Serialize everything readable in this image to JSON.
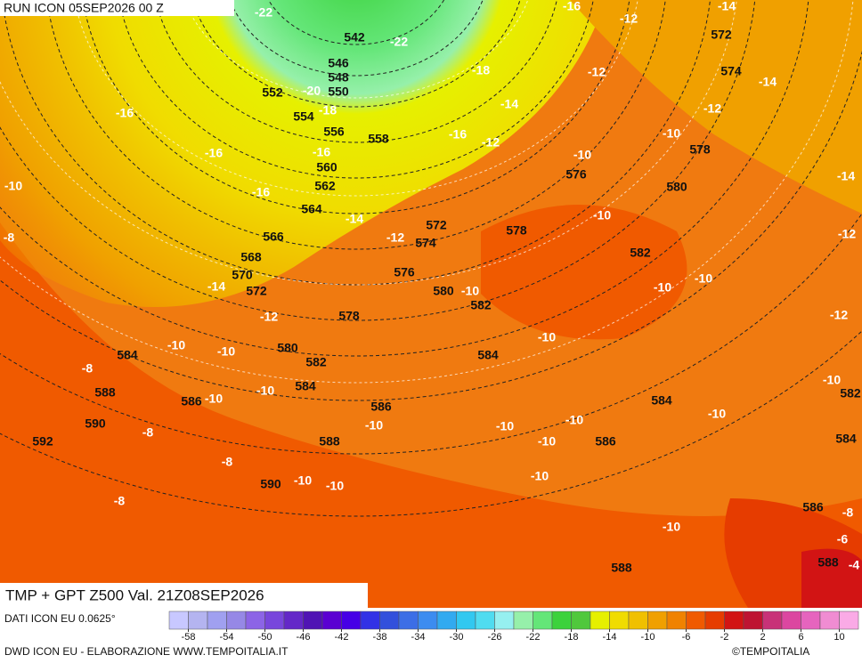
{
  "header": {
    "run": "RUN ICON 05SEP2026 00 Z"
  },
  "footer": {
    "title": "TMP + GPT Z500 Val. 21Z08SEP2026",
    "source": "DATI ICON EU 0.0625°",
    "credit": "DWD ICON EU - ELABORAZIONE WWW.TEMPOITALIA.IT",
    "copyright": "©TEMPOITALIA"
  },
  "map": {
    "geopotential_labels": [
      "542",
      "546",
      "548",
      "550",
      "552",
      "554",
      "556",
      "558",
      "560",
      "562",
      "564",
      "566",
      "568",
      "570",
      "572",
      "572",
      "574",
      "576",
      "578",
      "580",
      "582",
      "584",
      "580",
      "582",
      "584",
      "586",
      "584",
      "588",
      "590",
      "592",
      "590",
      "588",
      "586",
      "586",
      "584",
      "588",
      "588",
      "586",
      "584",
      "582",
      "578",
      "576",
      "578",
      "580",
      "582",
      "572",
      "574"
    ],
    "temperature_labels": [
      "-22",
      "-22",
      "-20",
      "-18",
      "-18",
      "-16",
      "-16",
      "-16",
      "-16",
      "-16",
      "-16",
      "-14",
      "-14",
      "-14",
      "-14",
      "-14",
      "-14",
      "-12",
      "-12",
      "-12",
      "-12",
      "-12",
      "-12",
      "-12",
      "-12",
      "-10",
      "-10",
      "-10",
      "-10",
      "-10",
      "-10",
      "-10",
      "-10",
      "-10",
      "-10",
      "-10",
      "-10",
      "-10",
      "-10",
      "-10",
      "-10",
      "-10",
      "-10",
      "-10",
      "-10",
      "-10",
      "-10",
      "-8",
      "-8",
      "-8",
      "-8",
      "-8",
      "-8",
      "-6",
      "-4"
    ]
  },
  "colorbar": {
    "lim": [
      -60,
      12
    ],
    "ticks": [
      -58,
      -54,
      -50,
      -46,
      -42,
      -38,
      -34,
      -30,
      -26,
      -22,
      -18,
      -14,
      -10,
      -6,
      -2,
      2,
      6,
      10
    ],
    "colors": [
      "#c8c8ff",
      "#b4b4f0",
      "#a0a0f0",
      "#9688e6",
      "#8c64e6",
      "#7846dc",
      "#6428c8",
      "#5014b4",
      "#5a00d2",
      "#4600e6",
      "#3232e6",
      "#3250dc",
      "#3c6ee6",
      "#3c8cf0",
      "#32aaf0",
      "#32c8f0",
      "#50dcf0",
      "#96f0f0",
      "#96f0aa",
      "#64e678",
      "#3cd23c",
      "#50c83c",
      "#e6f000",
      "#f0dc00",
      "#f0c000",
      "#f0a000",
      "#f08200",
      "#f05a00",
      "#e63c00",
      "#d21414",
      "#be1432",
      "#c83278",
      "#dc46a0",
      "#e664be",
      "#f08cd2",
      "#faaae6"
    ]
  }
}
